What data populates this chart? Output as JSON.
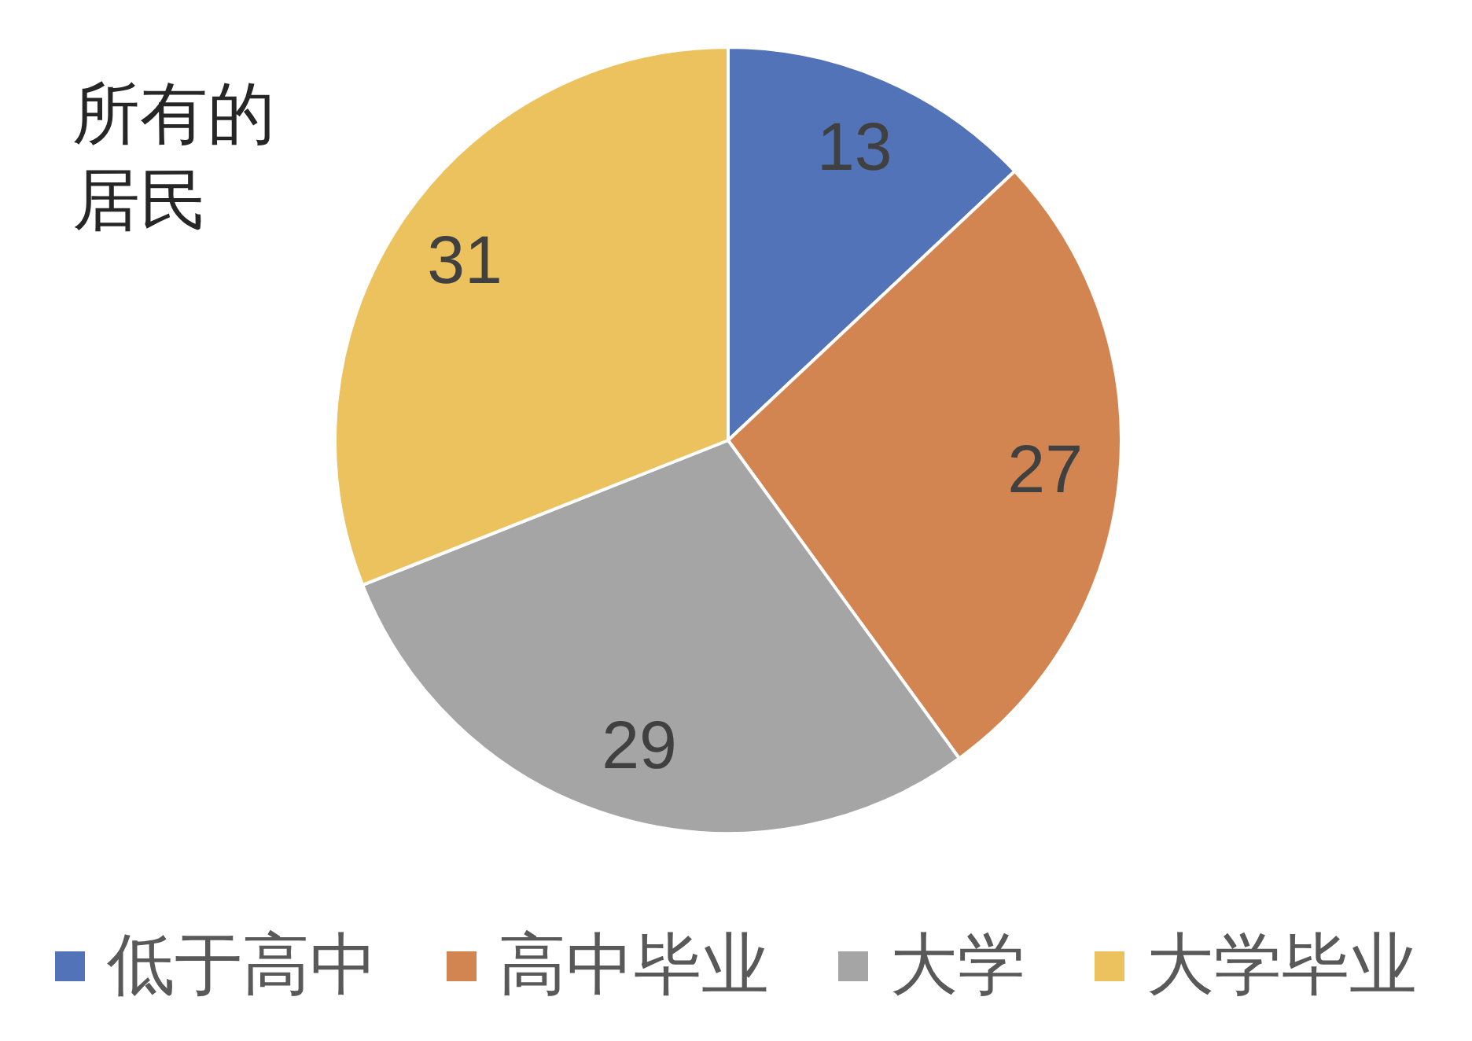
{
  "chart_data": {
    "type": "pie",
    "title": "所有的居民",
    "categories": [
      "低于高中",
      "高中毕业",
      "大学",
      "大学毕业"
    ],
    "values": [
      13,
      27,
      29,
      31
    ],
    "colors": [
      "#5373b8",
      "#d28550",
      "#a5a5a5",
      "#ecc25e"
    ],
    "data_labels": true,
    "legend": "bottom"
  }
}
